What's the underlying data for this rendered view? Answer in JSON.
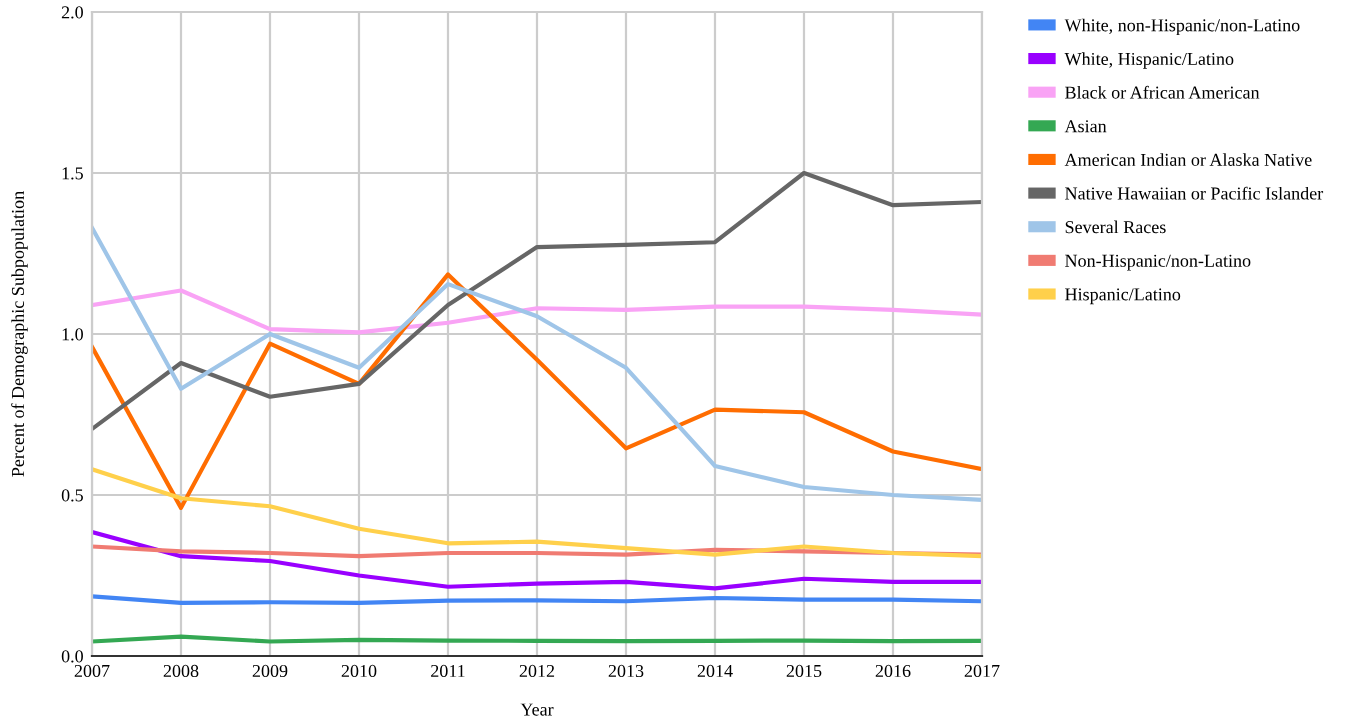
{
  "chart_data": {
    "type": "line",
    "xlabel": "Year",
    "ylabel": "Percent of Demographic Subpopulation",
    "x": [
      2007,
      2008,
      2009,
      2010,
      2011,
      2012,
      2013,
      2014,
      2015,
      2016,
      2017
    ],
    "xlim": [
      2007,
      2017
    ],
    "xticks": [
      2007,
      2008,
      2009,
      2010,
      2011,
      2012,
      2013,
      2014,
      2015,
      2016,
      2017
    ],
    "ylim": [
      0,
      2.0
    ],
    "yticks": [
      {
        "value": 0,
        "label": "0.0"
      },
      {
        "value": 0.5,
        "label": "0.5"
      },
      {
        "value": 1.0,
        "label": "1.0"
      },
      {
        "value": 1.5,
        "label": "1.5"
      },
      {
        "value": 2.0,
        "label": "2.0"
      }
    ],
    "grid": true,
    "legend": "top right",
    "marker": "none",
    "line_style": "solid",
    "series": [
      {
        "name": "White, non-Hispanic/non-Latino",
        "color": "#4285f4",
        "values": [
          0.185,
          0.165,
          0.167,
          0.165,
          0.172,
          0.173,
          0.17,
          0.18,
          0.175,
          0.175,
          0.17
        ]
      },
      {
        "name": "White, Hispanic/Latino",
        "color": "#9900ff",
        "values": [
          0.385,
          0.31,
          0.295,
          0.25,
          0.215,
          0.225,
          0.23,
          0.21,
          0.24,
          0.23,
          0.23
        ]
      },
      {
        "name": "Black or African American",
        "color": "#f9a3f5",
        "values": [
          1.09,
          1.135,
          1.015,
          1.005,
          1.035,
          1.08,
          1.075,
          1.085,
          1.085,
          1.075,
          1.06
        ]
      },
      {
        "name": "Asian",
        "color": "#34a853",
        "values": [
          0.045,
          0.06,
          0.045,
          0.05,
          0.048,
          0.047,
          0.046,
          0.047,
          0.048,
          0.046,
          0.047
        ]
      },
      {
        "name": "American Indian or Alaska Native",
        "color": "#ff6d01",
        "values": [
          0.96,
          0.46,
          0.97,
          0.845,
          1.185,
          0.92,
          0.645,
          0.765,
          0.757,
          0.635,
          0.58
        ]
      },
      {
        "name": "Native Hawaiian or Pacific Islander",
        "color": "#666666",
        "values": [
          0.705,
          0.91,
          0.805,
          0.845,
          1.09,
          1.27,
          1.277,
          1.285,
          1.5,
          1.4,
          1.41
        ]
      },
      {
        "name": "Several Races",
        "color": "#9fc5e8",
        "values": [
          1.33,
          0.83,
          1.0,
          0.895,
          1.155,
          1.055,
          0.895,
          0.59,
          0.525,
          0.5,
          0.485
        ]
      },
      {
        "name": "Non-Hispanic/non-Latino",
        "color": "#f07b72",
        "values": [
          0.34,
          0.325,
          0.32,
          0.31,
          0.32,
          0.32,
          0.315,
          0.33,
          0.325,
          0.32,
          0.315
        ]
      },
      {
        "name": "Hispanic/Latino",
        "color": "#ffd04b",
        "values": [
          0.58,
          0.49,
          0.465,
          0.395,
          0.35,
          0.355,
          0.335,
          0.315,
          0.34,
          0.32,
          0.31
        ]
      }
    ]
  }
}
